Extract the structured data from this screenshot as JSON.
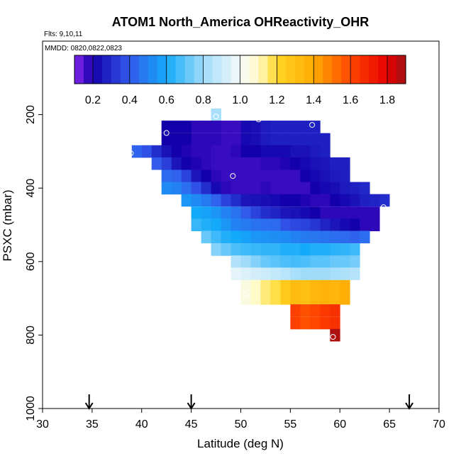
{
  "chart_data": {
    "type": "heatmap",
    "title": "ATOM1 North_America OHReactivity_OHR",
    "flights_label": "Flts: 9,10,11",
    "dates_label": "MMDD: 0820,0822,0823",
    "xlabel": "Latitude (deg N)",
    "ylabel": "PSXC (mbar)",
    "xlim": [
      30,
      70
    ],
    "ylim": [
      1000,
      0
    ],
    "x_ticks": [
      "30",
      "35",
      "40",
      "45",
      "50",
      "55",
      "60",
      "65",
      "70"
    ],
    "y_ticks": [
      "200",
      "400",
      "600",
      "800",
      "1000"
    ],
    "colorbar": {
      "range": [
        0.1,
        1.9
      ],
      "ticks": [
        "0.2",
        "0.4",
        "0.6",
        "0.8",
        "1.0",
        "1.2",
        "1.4",
        "1.6",
        "1.8"
      ]
    },
    "cell_size": {
      "lat_deg": 1,
      "pressure_mbar": 33.3
    },
    "rows": [
      {
        "p": 200,
        "cells": [
          [
            47.5,
            0.82
          ]
        ]
      },
      {
        "p": 233,
        "cells": [
          [
            42.5,
            0.2
          ],
          [
            43.5,
            0.2
          ],
          [
            44.5,
            0.2
          ],
          [
            45.5,
            0.18
          ],
          [
            46.5,
            0.18
          ],
          [
            47.5,
            0.18
          ],
          [
            48.5,
            0.17
          ],
          [
            49.5,
            0.17
          ],
          [
            50.5,
            0.22
          ],
          [
            51.5,
            0.23
          ],
          [
            52.5,
            0.26
          ],
          [
            53.5,
            0.27
          ],
          [
            54.5,
            0.27
          ],
          [
            55.5,
            0.27
          ],
          [
            56.5,
            0.27
          ],
          [
            57.5,
            0.27
          ]
        ]
      },
      {
        "p": 267,
        "cells": [
          [
            42.5,
            0.2
          ],
          [
            43.5,
            0.2
          ],
          [
            44.5,
            0.2
          ],
          [
            45.5,
            0.18
          ],
          [
            46.5,
            0.18
          ],
          [
            47.5,
            0.18
          ],
          [
            48.5,
            0.17
          ],
          [
            49.5,
            0.17
          ],
          [
            50.5,
            0.22
          ],
          [
            51.5,
            0.23
          ],
          [
            52.5,
            0.26
          ],
          [
            53.5,
            0.27
          ],
          [
            54.5,
            0.27
          ],
          [
            55.5,
            0.27
          ],
          [
            56.5,
            0.27
          ],
          [
            57.5,
            0.27
          ],
          [
            58.5,
            0.27
          ]
        ]
      },
      {
        "p": 300,
        "cells": [
          [
            39.5,
            0.42
          ],
          [
            40.5,
            0.38
          ],
          [
            41.5,
            0.3
          ],
          [
            42.5,
            0.24
          ],
          [
            43.5,
            0.2
          ],
          [
            44.5,
            0.19
          ],
          [
            45.5,
            0.18
          ],
          [
            46.5,
            0.18
          ],
          [
            47.5,
            0.17
          ],
          [
            48.5,
            0.17
          ],
          [
            49.5,
            0.18
          ],
          [
            50.5,
            0.2
          ],
          [
            51.5,
            0.2
          ],
          [
            52.5,
            0.22
          ],
          [
            53.5,
            0.22
          ],
          [
            54.5,
            0.22
          ],
          [
            55.5,
            0.24
          ],
          [
            56.5,
            0.24
          ],
          [
            57.5,
            0.26
          ],
          [
            58.5,
            0.27
          ]
        ]
      },
      {
        "p": 333,
        "cells": [
          [
            41.5,
            0.4
          ],
          [
            42.5,
            0.34
          ],
          [
            43.5,
            0.25
          ],
          [
            44.5,
            0.2
          ],
          [
            45.5,
            0.19
          ],
          [
            46.5,
            0.18
          ],
          [
            47.5,
            0.17
          ],
          [
            48.5,
            0.17
          ],
          [
            49.5,
            0.17
          ],
          [
            50.5,
            0.17
          ],
          [
            51.5,
            0.17
          ],
          [
            52.5,
            0.18
          ],
          [
            53.5,
            0.18
          ],
          [
            54.5,
            0.19
          ],
          [
            55.5,
            0.2
          ],
          [
            56.5,
            0.22
          ],
          [
            57.5,
            0.24
          ],
          [
            58.5,
            0.25
          ],
          [
            59.5,
            0.27
          ],
          [
            60.5,
            0.27
          ]
        ]
      },
      {
        "p": 367,
        "cells": [
          [
            42.5,
            0.44
          ],
          [
            43.5,
            0.42
          ],
          [
            44.5,
            0.35
          ],
          [
            45.5,
            0.25
          ],
          [
            46.5,
            0.2
          ],
          [
            47.5,
            0.18
          ],
          [
            48.5,
            0.17
          ],
          [
            49.5,
            0.17
          ],
          [
            50.5,
            0.17
          ],
          [
            51.5,
            0.17
          ],
          [
            52.5,
            0.17
          ],
          [
            53.5,
            0.17
          ],
          [
            54.5,
            0.17
          ],
          [
            55.5,
            0.17
          ],
          [
            56.5,
            0.2
          ],
          [
            57.5,
            0.22
          ],
          [
            58.5,
            0.24
          ],
          [
            59.5,
            0.26
          ],
          [
            60.5,
            0.27
          ]
        ]
      },
      {
        "p": 400,
        "cells": [
          [
            42.5,
            0.52
          ],
          [
            43.5,
            0.5
          ],
          [
            44.5,
            0.45
          ],
          [
            45.5,
            0.38
          ],
          [
            46.5,
            0.3
          ],
          [
            47.5,
            0.22
          ],
          [
            48.5,
            0.18
          ],
          [
            49.5,
            0.17
          ],
          [
            50.5,
            0.17
          ],
          [
            51.5,
            0.17
          ],
          [
            52.5,
            0.18
          ],
          [
            53.5,
            0.17
          ],
          [
            54.5,
            0.17
          ],
          [
            55.5,
            0.17
          ],
          [
            56.5,
            0.17
          ],
          [
            57.5,
            0.2
          ],
          [
            58.5,
            0.22
          ],
          [
            59.5,
            0.23
          ],
          [
            60.5,
            0.26
          ],
          [
            61.5,
            0.27
          ],
          [
            62.5,
            0.29
          ]
        ]
      },
      {
        "p": 433,
        "cells": [
          [
            44.5,
            0.55
          ],
          [
            45.5,
            0.52
          ],
          [
            46.5,
            0.48
          ],
          [
            47.5,
            0.42
          ],
          [
            48.5,
            0.35
          ],
          [
            49.5,
            0.3
          ],
          [
            50.5,
            0.25
          ],
          [
            51.5,
            0.24
          ],
          [
            52.5,
            0.23
          ],
          [
            53.5,
            0.22
          ],
          [
            54.5,
            0.2
          ],
          [
            55.5,
            0.2
          ],
          [
            56.5,
            0.19
          ],
          [
            57.5,
            0.18
          ],
          [
            58.5,
            0.18
          ],
          [
            59.5,
            0.2
          ],
          [
            60.5,
            0.22
          ],
          [
            61.5,
            0.24
          ],
          [
            62.5,
            0.27
          ],
          [
            63.5,
            0.28
          ],
          [
            64.5,
            0.3
          ]
        ]
      },
      {
        "p": 467,
        "cells": [
          [
            45.5,
            0.6
          ],
          [
            46.5,
            0.58
          ],
          [
            47.5,
            0.55
          ],
          [
            48.5,
            0.5
          ],
          [
            49.5,
            0.46
          ],
          [
            50.5,
            0.4
          ],
          [
            51.5,
            0.35
          ],
          [
            52.5,
            0.3
          ],
          [
            53.5,
            0.28
          ],
          [
            54.5,
            0.25
          ],
          [
            55.5,
            0.24
          ],
          [
            56.5,
            0.22
          ],
          [
            57.5,
            0.2
          ],
          [
            58.5,
            0.18
          ],
          [
            59.5,
            0.18
          ],
          [
            60.5,
            0.18
          ],
          [
            61.5,
            0.18
          ],
          [
            62.5,
            0.18
          ],
          [
            63.5,
            0.18
          ]
        ]
      },
      {
        "p": 500,
        "cells": [
          [
            45.5,
            0.65
          ],
          [
            46.5,
            0.62
          ],
          [
            47.5,
            0.6
          ],
          [
            48.5,
            0.55
          ],
          [
            49.5,
            0.5
          ],
          [
            50.5,
            0.48
          ],
          [
            51.5,
            0.46
          ],
          [
            52.5,
            0.45
          ],
          [
            53.5,
            0.44
          ],
          [
            54.5,
            0.38
          ],
          [
            55.5,
            0.36
          ],
          [
            56.5,
            0.35
          ],
          [
            57.5,
            0.32
          ],
          [
            58.5,
            0.28
          ],
          [
            59.5,
            0.25
          ],
          [
            60.5,
            0.22
          ],
          [
            61.5,
            0.2
          ],
          [
            62.5,
            0.18
          ],
          [
            63.5,
            0.18
          ]
        ]
      },
      {
        "p": 533,
        "cells": [
          [
            46.5,
            0.72
          ],
          [
            47.5,
            0.66
          ],
          [
            48.5,
            0.62
          ],
          [
            49.5,
            0.6
          ],
          [
            50.5,
            0.58
          ],
          [
            51.5,
            0.55
          ],
          [
            52.5,
            0.54
          ],
          [
            53.5,
            0.53
          ],
          [
            54.5,
            0.52
          ],
          [
            55.5,
            0.5
          ],
          [
            56.5,
            0.48
          ],
          [
            57.5,
            0.47
          ],
          [
            58.5,
            0.46
          ],
          [
            59.5,
            0.45
          ],
          [
            60.5,
            0.44
          ],
          [
            61.5,
            0.42
          ],
          [
            62.5,
            0.45
          ]
        ]
      },
      {
        "p": 567,
        "cells": [
          [
            47.5,
            0.76
          ],
          [
            48.5,
            0.72
          ],
          [
            49.5,
            0.68
          ],
          [
            50.5,
            0.66
          ],
          [
            51.5,
            0.65
          ],
          [
            52.5,
            0.64
          ],
          [
            53.5,
            0.64
          ],
          [
            54.5,
            0.62
          ],
          [
            55.5,
            0.62
          ],
          [
            56.5,
            0.6
          ],
          [
            57.5,
            0.62
          ],
          [
            58.5,
            0.62
          ],
          [
            59.5,
            0.63
          ],
          [
            60.5,
            0.64
          ],
          [
            61.5,
            0.66
          ]
        ]
      },
      {
        "p": 600,
        "cells": [
          [
            49.5,
            0.84
          ],
          [
            50.5,
            0.8
          ],
          [
            51.5,
            0.76
          ],
          [
            52.5,
            0.72
          ],
          [
            53.5,
            0.7
          ],
          [
            54.5,
            0.68
          ],
          [
            55.5,
            0.67
          ],
          [
            56.5,
            0.68
          ],
          [
            57.5,
            0.7
          ],
          [
            58.5,
            0.7
          ],
          [
            59.5,
            0.72
          ],
          [
            60.5,
            0.72
          ],
          [
            61.5,
            0.74
          ]
        ]
      },
      {
        "p": 633,
        "cells": [
          [
            49.5,
            0.96
          ],
          [
            50.5,
            0.94
          ],
          [
            51.5,
            0.92
          ],
          [
            52.5,
            0.9
          ],
          [
            53.5,
            0.88
          ],
          [
            54.5,
            0.86
          ],
          [
            55.5,
            0.82
          ],
          [
            56.5,
            0.8
          ],
          [
            57.5,
            0.8
          ],
          [
            58.5,
            0.8
          ],
          [
            59.5,
            0.82
          ],
          [
            60.5,
            0.83
          ],
          [
            61.5,
            0.85
          ]
        ]
      },
      {
        "p": 667,
        "cells": [
          [
            50.5,
            1.05
          ],
          [
            51.5,
            1.1
          ],
          [
            52.5,
            1.15
          ],
          [
            53.5,
            1.18
          ],
          [
            54.5,
            1.26
          ],
          [
            55.5,
            1.32
          ],
          [
            56.5,
            1.3
          ],
          [
            57.5,
            1.34
          ],
          [
            58.5,
            1.36
          ],
          [
            59.5,
            1.35
          ],
          [
            60.5,
            1.38
          ]
        ]
      },
      {
        "p": 700,
        "cells": [
          [
            50.5,
            1.05
          ],
          [
            51.5,
            1.1
          ],
          [
            52.5,
            1.15
          ],
          [
            53.5,
            1.18
          ],
          [
            54.5,
            1.26
          ],
          [
            55.5,
            1.32
          ],
          [
            56.5,
            1.3
          ],
          [
            57.5,
            1.34
          ],
          [
            58.5,
            1.36
          ],
          [
            59.5,
            1.35
          ],
          [
            60.5,
            1.38
          ]
        ]
      },
      {
        "p": 733,
        "cells": [
          [
            55.5,
            1.62
          ],
          [
            56.5,
            1.58
          ],
          [
            57.5,
            1.6
          ],
          [
            58.5,
            1.64
          ],
          [
            59.5,
            1.66
          ]
        ]
      },
      {
        "p": 767,
        "cells": [
          [
            55.5,
            1.62
          ],
          [
            56.5,
            1.58
          ],
          [
            57.5,
            1.6
          ],
          [
            58.5,
            1.64
          ],
          [
            59.5,
            1.66
          ]
        ]
      },
      {
        "p": 800,
        "cells": [
          [
            59.5,
            1.88
          ]
        ]
      }
    ],
    "circles": [
      {
        "lat": 47.5,
        "p": 205
      },
      {
        "lat": 51.8,
        "p": 213
      },
      {
        "lat": 57.2,
        "p": 228
      },
      {
        "lat": 42.5,
        "p": 250
      },
      {
        "lat": 38.9,
        "p": 305
      },
      {
        "lat": 49.2,
        "p": 367
      },
      {
        "lat": 64.4,
        "p": 452
      },
      {
        "lat": 50.5,
        "p": 690
      },
      {
        "lat": 59.3,
        "p": 805
      }
    ],
    "arrows": [
      {
        "lat": 34.7
      },
      {
        "lat": 45.0
      },
      {
        "lat": 67.0
      }
    ]
  }
}
